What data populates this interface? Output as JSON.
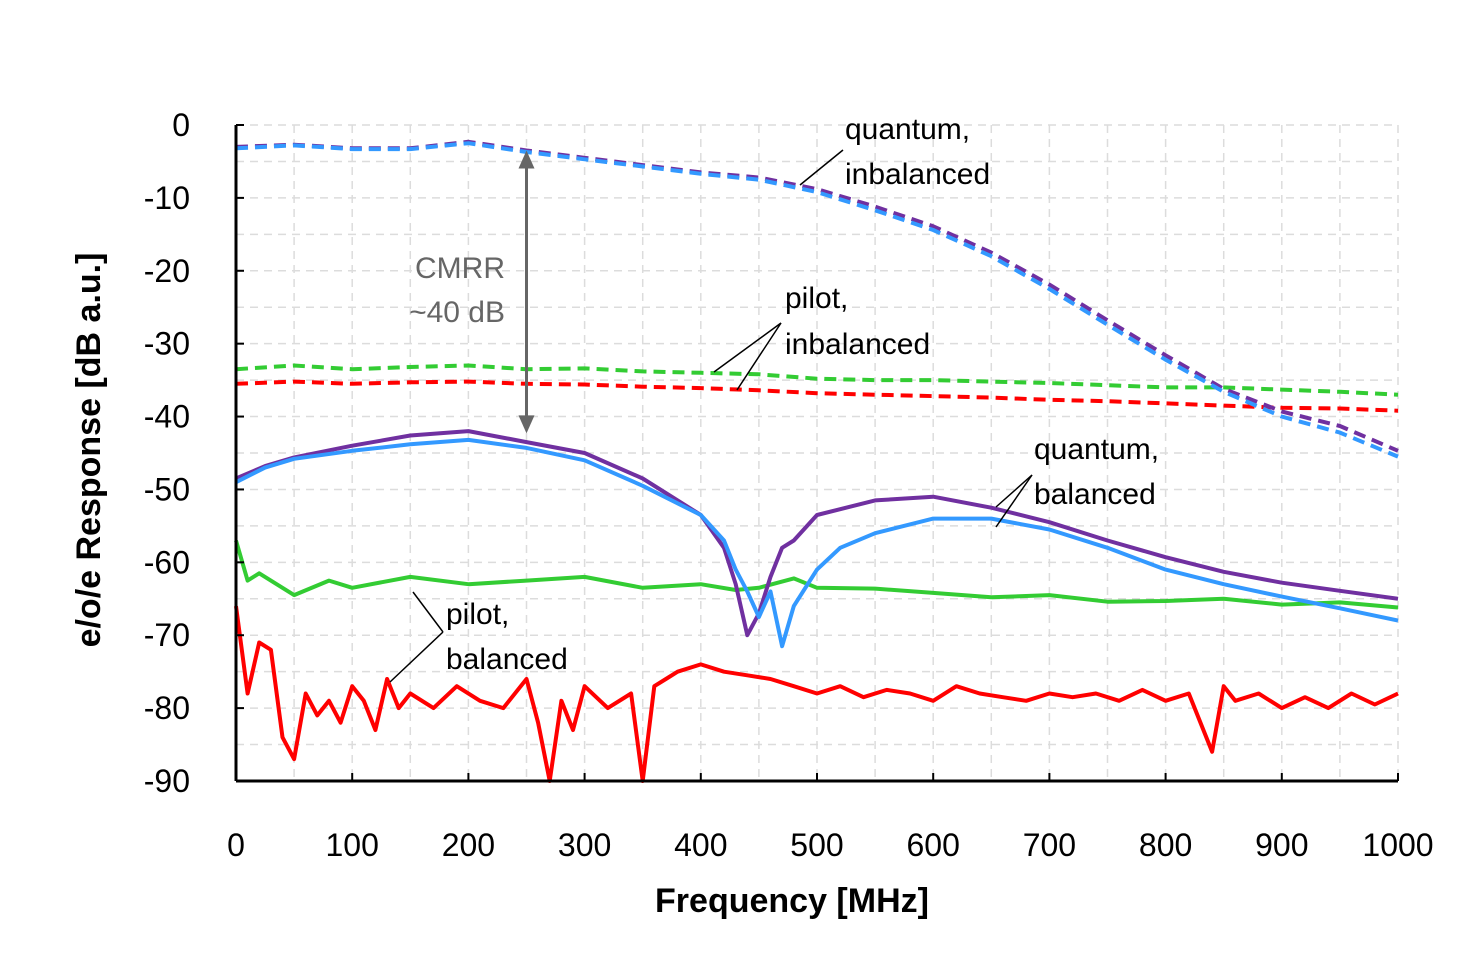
{
  "chart_data": {
    "type": "line",
    "title": "",
    "xlabel": "Frequency [MHz]",
    "ylabel": "e/o/e Response [dB a.u.]",
    "xlim": [
      0,
      1000
    ],
    "ylim": [
      -90,
      0
    ],
    "xticks": [
      0,
      100,
      200,
      300,
      400,
      500,
      600,
      700,
      800,
      900,
      1000
    ],
    "yticks": [
      0,
      -10,
      -20,
      -30,
      -40,
      -50,
      -60,
      -70,
      -80,
      -90
    ],
    "xtick_labels": [
      "0",
      "100",
      "200",
      "300",
      "400",
      "500",
      "600",
      "700",
      "800",
      "900",
      "1000"
    ],
    "ytick_labels": [
      "0",
      "-10",
      "-20",
      "-30",
      "-40",
      "-50",
      "-60",
      "-70",
      "-80",
      "-90"
    ],
    "grid": true,
    "colors": {
      "purple": "#7030A0",
      "blue": "#3399FF",
      "green": "#33CC33",
      "red": "#FF0000",
      "gray": "#666666"
    },
    "series": [
      {
        "name": "quantum, inbalanced (1)",
        "color": "#7030A0",
        "style": "dashed",
        "x": [
          0,
          50,
          100,
          150,
          200,
          250,
          300,
          350,
          400,
          450,
          500,
          550,
          600,
          650,
          700,
          750,
          800,
          850,
          900,
          950,
          1000
        ],
        "y": [
          -3.0,
          -2.7,
          -3.2,
          -3.2,
          -2.3,
          -3.5,
          -4.5,
          -5.5,
          -6.5,
          -7.2,
          -8.8,
          -11.2,
          -13.9,
          -17.5,
          -21.9,
          -26.8,
          -31.6,
          -36.2,
          -39.3,
          -41.3,
          -44.7
        ]
      },
      {
        "name": "quantum, inbalanced (2)",
        "color": "#3399FF",
        "style": "dashed",
        "x": [
          0,
          50,
          100,
          150,
          200,
          250,
          300,
          350,
          400,
          450,
          500,
          550,
          600,
          650,
          700,
          750,
          800,
          850,
          900,
          950,
          1000
        ],
        "y": [
          -3.2,
          -2.8,
          -3.3,
          -3.3,
          -2.5,
          -3.7,
          -4.7,
          -5.7,
          -6.7,
          -7.5,
          -9.2,
          -11.7,
          -14.4,
          -18.0,
          -22.5,
          -27.4,
          -32.2,
          -36.6,
          -40.0,
          -42.2,
          -45.5
        ]
      },
      {
        "name": "pilot, inbalanced (1)",
        "color": "#33CC33",
        "style": "dashed",
        "x": [
          0,
          50,
          100,
          150,
          200,
          250,
          300,
          350,
          400,
          450,
          500,
          550,
          600,
          650,
          700,
          750,
          800,
          850,
          900,
          950,
          1000
        ],
        "y": [
          -33.5,
          -33.0,
          -33.5,
          -33.2,
          -33.0,
          -33.5,
          -33.4,
          -33.8,
          -34.0,
          -34.2,
          -34.8,
          -35.0,
          -35.0,
          -35.2,
          -35.4,
          -35.7,
          -36.0,
          -36.0,
          -36.3,
          -36.6,
          -37.0
        ]
      },
      {
        "name": "pilot, inbalanced (2)",
        "color": "#FF0000",
        "style": "dashed",
        "x": [
          0,
          50,
          100,
          150,
          200,
          250,
          300,
          350,
          400,
          450,
          500,
          550,
          600,
          650,
          700,
          750,
          800,
          850,
          900,
          950,
          1000
        ],
        "y": [
          -35.5,
          -35.2,
          -35.5,
          -35.3,
          -35.2,
          -35.5,
          -35.6,
          -35.9,
          -36.1,
          -36.4,
          -36.8,
          -37.0,
          -37.2,
          -37.4,
          -37.7,
          -37.9,
          -38.2,
          -38.5,
          -38.8,
          -38.9,
          -39.2
        ]
      },
      {
        "name": "quantum, balanced (1)",
        "color": "#7030A0",
        "style": "solid",
        "x": [
          0,
          25,
          50,
          100,
          150,
          200,
          250,
          300,
          350,
          400,
          420,
          430,
          440,
          450,
          460,
          470,
          480,
          500,
          550,
          600,
          650,
          700,
          750,
          800,
          850,
          900,
          950,
          1000
        ],
        "y": [
          -48.5,
          -46.8,
          -45.6,
          -44.0,
          -42.6,
          -42.0,
          -43.5,
          -45.0,
          -48.5,
          -53.5,
          -58.0,
          -63.0,
          -70.0,
          -67.0,
          -62.0,
          -58.0,
          -57.0,
          -53.5,
          -51.5,
          -51.0,
          -52.5,
          -54.5,
          -57.0,
          -59.3,
          -61.3,
          -62.8,
          -63.9,
          -65.0
        ]
      },
      {
        "name": "quantum, balanced (2)",
        "color": "#3399FF",
        "style": "solid",
        "x": [
          0,
          25,
          50,
          100,
          150,
          200,
          250,
          300,
          350,
          400,
          420,
          430,
          440,
          450,
          460,
          470,
          480,
          500,
          520,
          550,
          600,
          650,
          700,
          750,
          800,
          850,
          900,
          950,
          1000
        ],
        "y": [
          -49.0,
          -47.0,
          -45.8,
          -44.7,
          -43.8,
          -43.2,
          -44.3,
          -46.0,
          -49.5,
          -53.5,
          -57.0,
          -61.0,
          -64.0,
          -67.5,
          -64.0,
          -71.5,
          -66.0,
          -61.0,
          -58.0,
          -56.0,
          -54.0,
          -54.0,
          -55.5,
          -58.0,
          -61.0,
          -63.0,
          -64.7,
          -66.3,
          -68.0
        ]
      },
      {
        "name": "pilot, balanced (1)",
        "color": "#33CC33",
        "style": "solid",
        "x": [
          0,
          10,
          20,
          50,
          80,
          100,
          150,
          200,
          250,
          300,
          350,
          400,
          430,
          450,
          480,
          500,
          550,
          600,
          650,
          700,
          750,
          800,
          850,
          900,
          950,
          1000
        ],
        "y": [
          -57.0,
          -62.5,
          -61.5,
          -64.5,
          -62.5,
          -63.5,
          -62.0,
          -63.0,
          -62.5,
          -62.0,
          -63.5,
          -63.0,
          -63.8,
          -63.5,
          -62.2,
          -63.5,
          -63.6,
          -64.2,
          -64.8,
          -64.5,
          -65.4,
          -65.3,
          -65.0,
          -65.8,
          -65.5,
          -66.2
        ]
      },
      {
        "name": "pilot, balanced (2)",
        "color": "#FF0000",
        "style": "solid",
        "x": [
          0,
          10,
          20,
          30,
          40,
          50,
          60,
          70,
          80,
          90,
          100,
          110,
          120,
          130,
          140,
          150,
          170,
          190,
          210,
          230,
          250,
          260,
          270,
          280,
          290,
          300,
          320,
          340,
          350,
          360,
          370,
          380,
          400,
          420,
          440,
          460,
          480,
          500,
          520,
          540,
          560,
          580,
          600,
          620,
          640,
          660,
          680,
          700,
          720,
          740,
          760,
          780,
          800,
          820,
          840,
          850,
          860,
          880,
          900,
          920,
          940,
          960,
          980,
          1000
        ],
        "y": [
          -66.0,
          -78.0,
          -71.0,
          -72.0,
          -84.0,
          -87.0,
          -78.0,
          -81.0,
          -79.0,
          -82.0,
          -77.0,
          -79.0,
          -83.0,
          -76.0,
          -80.0,
          -78.0,
          -80.0,
          -77.0,
          -79.0,
          -80.0,
          -76.0,
          -82.0,
          -90.0,
          -79.0,
          -83.0,
          -77.0,
          -80.0,
          -78.0,
          -90.0,
          -77.0,
          -76.0,
          -75.0,
          -74.0,
          -75.0,
          -75.5,
          -76.0,
          -77.0,
          -78.0,
          -77.0,
          -78.5,
          -77.5,
          -78.0,
          -79.0,
          -77.0,
          -78.0,
          -78.5,
          -79.0,
          -78.0,
          -78.5,
          -78.0,
          -79.0,
          -77.5,
          -79.0,
          -78.0,
          -86.0,
          -77.0,
          -79.0,
          -78.0,
          -80.0,
          -78.5,
          -80.0,
          -78.0,
          -79.5,
          -78.0
        ]
      }
    ],
    "annotations": [
      {
        "lines": [
          "quantum,",
          "inbalanced"
        ]
      },
      {
        "lines": [
          "pilot,",
          "inbalanced"
        ]
      },
      {
        "lines": [
          "quantum,",
          "balanced"
        ]
      },
      {
        "lines": [
          "pilot,",
          "balanced"
        ]
      },
      {
        "lines": [
          "CMRR",
          "~40 dB"
        ],
        "arrow_from": [
          250,
          -3.5
        ],
        "arrow_to": [
          250,
          -42.3
        ]
      }
    ]
  }
}
